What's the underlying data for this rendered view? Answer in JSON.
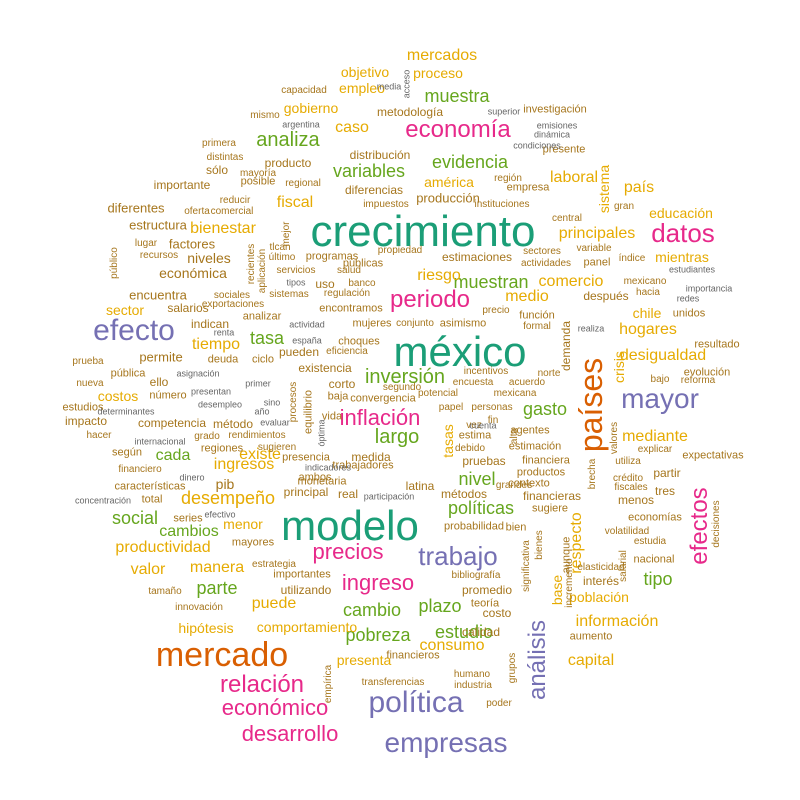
{
  "palette": {
    "teal": "#1b9e77",
    "orange": "#d95f02",
    "purple": "#7570b3",
    "magenta": "#e7298a",
    "green": "#66a61e",
    "gold": "#e6ab02",
    "brown": "#a6761d",
    "gray": "#666666"
  },
  "words": [
    {
      "text": "crecimiento",
      "color": "teal"
    },
    {
      "text": "méxico",
      "color": "teal"
    },
    {
      "text": "modelo",
      "color": "teal"
    },
    {
      "text": "mercado",
      "color": "orange"
    },
    {
      "text": "países",
      "color": "orange"
    },
    {
      "text": "efecto",
      "color": "purple"
    },
    {
      "text": "mayor",
      "color": "purple"
    },
    {
      "text": "política",
      "color": "purple"
    },
    {
      "text": "empresas",
      "color": "purple"
    },
    {
      "text": "trabajo",
      "color": "purple"
    },
    {
      "text": "análisis",
      "color": "purple"
    },
    {
      "text": "datos",
      "color": "magenta"
    },
    {
      "text": "economía",
      "color": "magenta"
    },
    {
      "text": "periodo",
      "color": "magenta"
    },
    {
      "text": "efectos",
      "color": "magenta"
    },
    {
      "text": "relación",
      "color": "magenta"
    },
    {
      "text": "económico",
      "color": "magenta"
    },
    {
      "text": "desarrollo",
      "color": "magenta"
    },
    {
      "text": "precios",
      "color": "magenta"
    },
    {
      "text": "ingreso",
      "color": "magenta"
    },
    {
      "text": "inflación",
      "color": "magenta"
    },
    {
      "text": "analiza",
      "color": "green"
    },
    {
      "text": "largo",
      "color": "green"
    },
    {
      "text": "inversión",
      "color": "green"
    },
    {
      "text": "evidencia",
      "color": "green"
    },
    {
      "text": "muestra",
      "color": "green"
    },
    {
      "text": "variables",
      "color": "green"
    },
    {
      "text": "muestran",
      "color": "green"
    },
    {
      "text": "políticas",
      "color": "green"
    },
    {
      "text": "nivel",
      "color": "green"
    },
    {
      "text": "gasto",
      "color": "green"
    },
    {
      "text": "social",
      "color": "green"
    },
    {
      "text": "cambio",
      "color": "green"
    },
    {
      "text": "plazo",
      "color": "green"
    },
    {
      "text": "pobreza",
      "color": "green"
    },
    {
      "text": "estudio",
      "color": "green"
    },
    {
      "text": "parte",
      "color": "green"
    },
    {
      "text": "tasa",
      "color": "green"
    },
    {
      "text": "tipo",
      "color": "green"
    },
    {
      "text": "cambios",
      "color": "green"
    },
    {
      "text": "cada",
      "color": "green"
    },
    {
      "text": "mercados",
      "color": "gold"
    },
    {
      "text": "objetivo",
      "color": "gold"
    },
    {
      "text": "empleo",
      "color": "gold"
    },
    {
      "text": "proceso",
      "color": "gold"
    },
    {
      "text": "gobierno",
      "color": "gold"
    },
    {
      "text": "caso",
      "color": "gold"
    },
    {
      "text": "fiscal",
      "color": "gold"
    },
    {
      "text": "bienestar",
      "color": "gold"
    },
    {
      "text": "principales",
      "color": "gold"
    },
    {
      "text": "laboral",
      "color": "gold"
    },
    {
      "text": "américa",
      "color": "gold"
    },
    {
      "text": "país",
      "color": "gold"
    },
    {
      "text": "educación",
      "color": "gold"
    },
    {
      "text": "mientras",
      "color": "gold"
    },
    {
      "text": "comercio",
      "color": "gold"
    },
    {
      "text": "medio",
      "color": "gold"
    },
    {
      "text": "riesgo",
      "color": "gold"
    },
    {
      "text": "chile",
      "color": "gold"
    },
    {
      "text": "hogares",
      "color": "gold"
    },
    {
      "text": "desigualdad",
      "color": "gold"
    },
    {
      "text": "tiempo",
      "color": "gold"
    },
    {
      "text": "existe",
      "color": "gold"
    },
    {
      "text": "costos",
      "color": "gold"
    },
    {
      "text": "ingresos",
      "color": "gold"
    },
    {
      "text": "desempeño",
      "color": "gold"
    },
    {
      "text": "productividad",
      "color": "gold"
    },
    {
      "text": "valor",
      "color": "gold"
    },
    {
      "text": "manera",
      "color": "gold"
    },
    {
      "text": "puede",
      "color": "gold"
    },
    {
      "text": "sector",
      "color": "gold"
    },
    {
      "text": "comportamiento",
      "color": "gold"
    },
    {
      "text": "hipótesis",
      "color": "gold"
    },
    {
      "text": "presenta",
      "color": "gold"
    },
    {
      "text": "consumo",
      "color": "gold"
    },
    {
      "text": "mediante",
      "color": "gold"
    },
    {
      "text": "información",
      "color": "gold"
    },
    {
      "text": "capital",
      "color": "gold"
    },
    {
      "text": "población",
      "color": "gold"
    },
    {
      "text": "respecto",
      "color": "gold"
    },
    {
      "text": "sistema",
      "color": "gold"
    },
    {
      "text": "crisis",
      "color": "gold"
    },
    {
      "text": "tasas",
      "color": "gold"
    },
    {
      "text": "base",
      "color": "gold"
    },
    {
      "text": "metodología",
      "color": "brown"
    },
    {
      "text": "investigación",
      "color": "brown"
    },
    {
      "text": "distribución",
      "color": "brown"
    },
    {
      "text": "producción",
      "color": "brown"
    },
    {
      "text": "diferencias",
      "color": "brown"
    },
    {
      "text": "producto",
      "color": "brown"
    },
    {
      "text": "estructura",
      "color": "brown"
    },
    {
      "text": "diferentes",
      "color": "brown"
    },
    {
      "text": "importante",
      "color": "brown"
    },
    {
      "text": "factores",
      "color": "brown"
    },
    {
      "text": "niveles",
      "color": "brown"
    },
    {
      "text": "económica",
      "color": "brown"
    },
    {
      "text": "encuentra",
      "color": "brown"
    },
    {
      "text": "salarios",
      "color": "brown"
    },
    {
      "text": "indican",
      "color": "brown"
    },
    {
      "text": "permite",
      "color": "brown"
    },
    {
      "text": "estimaciones",
      "color": "brown"
    },
    {
      "text": "programas",
      "color": "brown"
    },
    {
      "text": "empresa",
      "color": "brown"
    },
    {
      "text": "presente",
      "color": "brown"
    },
    {
      "text": "panel",
      "color": "brown"
    },
    {
      "text": "después",
      "color": "brown"
    },
    {
      "text": "resultado",
      "color": "brown"
    },
    {
      "text": "evolución",
      "color": "brown"
    },
    {
      "text": "expectativas",
      "color": "brown"
    },
    {
      "text": "partir",
      "color": "brown"
    },
    {
      "text": "tres",
      "color": "brown"
    },
    {
      "text": "menos",
      "color": "brown"
    },
    {
      "text": "economías",
      "color": "brown"
    },
    {
      "text": "nacional",
      "color": "brown"
    },
    {
      "text": "interés",
      "color": "brown"
    },
    {
      "text": "aumento",
      "color": "brown"
    },
    {
      "text": "calidad",
      "color": "brown"
    },
    {
      "text": "promedio",
      "color": "brown"
    },
    {
      "text": "costo",
      "color": "brown"
    },
    {
      "text": "teoría",
      "color": "brown"
    },
    {
      "text": "financieros",
      "color": "brown"
    },
    {
      "text": "industria",
      "color": "brown"
    },
    {
      "text": "poder",
      "color": "brown"
    },
    {
      "text": "transferencias",
      "color": "brown"
    },
    {
      "text": "utilizando",
      "color": "brown"
    },
    {
      "text": "importantes",
      "color": "brown"
    },
    {
      "text": "mayores",
      "color": "brown"
    },
    {
      "text": "series",
      "color": "brown"
    },
    {
      "text": "pib",
      "color": "brown"
    },
    {
      "text": "principal",
      "color": "brown"
    },
    {
      "text": "ambos",
      "color": "brown"
    },
    {
      "text": "real",
      "color": "brown"
    },
    {
      "text": "medida",
      "color": "brown"
    },
    {
      "text": "trabajadores",
      "color": "brown"
    },
    {
      "text": "latina",
      "color": "brown"
    },
    {
      "text": "métodos",
      "color": "brown"
    },
    {
      "text": "pruebas",
      "color": "brown"
    },
    {
      "text": "financieras",
      "color": "brown"
    },
    {
      "text": "sugiere",
      "color": "brown"
    },
    {
      "text": "probabilidad",
      "color": "brown"
    },
    {
      "text": "bien",
      "color": "brown"
    },
    {
      "text": "regiones",
      "color": "brown"
    },
    {
      "text": "según",
      "color": "brown"
    },
    {
      "text": "competencia",
      "color": "brown"
    },
    {
      "text": "método",
      "color": "brown"
    },
    {
      "text": "estudios",
      "color": "brown"
    },
    {
      "text": "impacto",
      "color": "brown"
    },
    {
      "text": "presencia",
      "color": "brown"
    },
    {
      "text": "existencia",
      "color": "brown"
    },
    {
      "text": "corto",
      "color": "brown"
    },
    {
      "text": "pueden",
      "color": "brown"
    },
    {
      "text": "mujeres",
      "color": "brown"
    },
    {
      "text": "conjunto",
      "color": "brown"
    },
    {
      "text": "asimismo",
      "color": "brown"
    },
    {
      "text": "estima",
      "color": "brown"
    },
    {
      "text": "agentes",
      "color": "brown"
    },
    {
      "text": "estimación",
      "color": "brown"
    },
    {
      "text": "financiera",
      "color": "brown"
    },
    {
      "text": "productos",
      "color": "brown"
    },
    {
      "text": "contexto",
      "color": "brown"
    },
    {
      "text": "regulación",
      "color": "brown"
    },
    {
      "text": "públicas",
      "color": "brown"
    },
    {
      "text": "uso",
      "color": "brown"
    },
    {
      "text": "servicios",
      "color": "brown"
    },
    {
      "text": "analizar",
      "color": "brown"
    },
    {
      "text": "sistemas",
      "color": "brown"
    },
    {
      "text": "exportaciones",
      "color": "brown"
    },
    {
      "text": "sólo",
      "color": "brown"
    },
    {
      "text": "posible",
      "color": "brown"
    },
    {
      "text": "comercial",
      "color": "brown"
    },
    {
      "text": "impuestos",
      "color": "brown"
    },
    {
      "text": "instituciones",
      "color": "brown"
    },
    {
      "text": "bajo",
      "color": "brown"
    },
    {
      "text": "reforma",
      "color": "brown"
    },
    {
      "text": "mexicano",
      "color": "brown"
    },
    {
      "text": "unidos",
      "color": "brown"
    },
    {
      "text": "hacia",
      "color": "brown"
    },
    {
      "text": "estudia",
      "color": "brown"
    },
    {
      "text": "utiliza",
      "color": "brown"
    },
    {
      "text": "explicar",
      "color": "brown"
    },
    {
      "text": "crédito",
      "color": "brown"
    },
    {
      "text": "fiscales",
      "color": "brown"
    },
    {
      "text": "volatilidad",
      "color": "brown"
    },
    {
      "text": "decisiones",
      "color": "brown"
    },
    {
      "text": "grandes",
      "color": "brown"
    },
    {
      "text": "bienes",
      "color": "brown"
    },
    {
      "text": "demanda",
      "color": "brown"
    },
    {
      "text": "función",
      "color": "brown"
    },
    {
      "text": "formal",
      "color": "brown"
    },
    {
      "text": "precio",
      "color": "brown"
    },
    {
      "text": "norte",
      "color": "brown"
    },
    {
      "text": "incentivos",
      "color": "brown"
    },
    {
      "text": "acuerdo",
      "color": "brown"
    },
    {
      "text": "encuesta",
      "color": "brown"
    },
    {
      "text": "segundo",
      "color": "brown"
    },
    {
      "text": "convergencia",
      "color": "brown"
    },
    {
      "text": "potencial",
      "color": "brown"
    },
    {
      "text": "mexicana",
      "color": "brown"
    },
    {
      "text": "papel",
      "color": "brown"
    },
    {
      "text": "personas",
      "color": "brown"
    },
    {
      "text": "baja",
      "color": "brown"
    },
    {
      "text": "choques",
      "color": "brown"
    },
    {
      "text": "eficiencia",
      "color": "brown"
    },
    {
      "text": "encontramos",
      "color": "brown"
    },
    {
      "text": "monetaria",
      "color": "brown"
    },
    {
      "text": "equilibrio",
      "color": "brown"
    },
    {
      "text": "procesos",
      "color": "brown"
    },
    {
      "text": "vida",
      "color": "brown"
    },
    {
      "text": "deuda",
      "color": "brown"
    },
    {
      "text": "ciclo",
      "color": "brown"
    },
    {
      "text": "pública",
      "color": "brown"
    },
    {
      "text": "ello",
      "color": "brown"
    },
    {
      "text": "número",
      "color": "brown"
    },
    {
      "text": "prueba",
      "color": "brown"
    },
    {
      "text": "nueva",
      "color": "brown"
    },
    {
      "text": "hacer",
      "color": "brown"
    },
    {
      "text": "financiero",
      "color": "brown"
    },
    {
      "text": "características",
      "color": "brown"
    },
    {
      "text": "total",
      "color": "brown"
    },
    {
      "text": "tamaño",
      "color": "brown"
    },
    {
      "text": "innovación",
      "color": "brown"
    },
    {
      "text": "estrategia",
      "color": "brown"
    },
    {
      "text": "grado",
      "color": "brown"
    },
    {
      "text": "rendimientos",
      "color": "brown"
    },
    {
      "text": "sugieren",
      "color": "brown"
    },
    {
      "text": "capacidad",
      "color": "brown"
    },
    {
      "text": "mismo",
      "color": "brown"
    },
    {
      "text": "primera",
      "color": "brown"
    },
    {
      "text": "distintas",
      "color": "brown"
    },
    {
      "text": "reducir",
      "color": "brown"
    },
    {
      "text": "oferta",
      "color": "brown"
    },
    {
      "text": "lugar",
      "color": "brown"
    },
    {
      "text": "recursos",
      "color": "brown"
    },
    {
      "text": "público",
      "color": "brown"
    },
    {
      "text": "mayoría",
      "color": "brown"
    },
    {
      "text": "regional",
      "color": "brown"
    },
    {
      "text": "sociales",
      "color": "brown"
    },
    {
      "text": "región",
      "color": "brown"
    },
    {
      "text": "sectores",
      "color": "brown"
    },
    {
      "text": "actividades",
      "color": "brown"
    },
    {
      "text": "central",
      "color": "brown"
    },
    {
      "text": "variable",
      "color": "brown"
    },
    {
      "text": "gran",
      "color": "brown"
    },
    {
      "text": "índice",
      "color": "brown"
    },
    {
      "text": "elasticidad",
      "color": "brown"
    },
    {
      "text": "empírica",
      "color": "brown"
    },
    {
      "text": "aunque",
      "color": "brown"
    },
    {
      "text": "incremento",
      "color": "brown"
    },
    {
      "text": "significativa",
      "color": "brown"
    },
    {
      "text": "brecha",
      "color": "brown"
    },
    {
      "text": "valores",
      "color": "brown"
    },
    {
      "text": "salarial",
      "color": "brown"
    },
    {
      "text": "fin",
      "color": "brown"
    },
    {
      "text": "debido",
      "color": "brown"
    },
    {
      "text": "vez",
      "color": "brown"
    },
    {
      "text": "alta",
      "color": "brown"
    },
    {
      "text": "bibliografía",
      "color": "brown"
    },
    {
      "text": "humano",
      "color": "brown"
    },
    {
      "text": "grupos",
      "color": "brown"
    },
    {
      "text": "mejor",
      "color": "brown"
    },
    {
      "text": "recientes",
      "color": "brown"
    },
    {
      "text": "aplicación",
      "color": "brown"
    },
    {
      "text": "tlcan",
      "color": "brown"
    },
    {
      "text": "último",
      "color": "brown"
    },
    {
      "text": "propiedad",
      "color": "brown"
    },
    {
      "text": "salud",
      "color": "brown"
    },
    {
      "text": "banco",
      "color": "brown"
    },
    {
      "text": "actividad",
      "color": "gray"
    },
    {
      "text": "tipos",
      "color": "gray"
    },
    {
      "text": "asignación",
      "color": "gray"
    },
    {
      "text": "primer",
      "color": "gray"
    },
    {
      "text": "presentan",
      "color": "gray"
    },
    {
      "text": "desempleo",
      "color": "gray"
    },
    {
      "text": "determinantes",
      "color": "gray"
    },
    {
      "text": "año",
      "color": "gray"
    },
    {
      "text": "internacional",
      "color": "gray"
    },
    {
      "text": "evaluar",
      "color": "gray"
    },
    {
      "text": "españa",
      "color": "gray"
    },
    {
      "text": "óptima",
      "color": "gray"
    },
    {
      "text": "dinero",
      "color": "gray"
    },
    {
      "text": "indicadores",
      "color": "gray"
    },
    {
      "text": "participación",
      "color": "gray"
    },
    {
      "text": "concentración",
      "color": "gray"
    },
    {
      "text": "efectivo",
      "color": "gray"
    },
    {
      "text": "renta",
      "color": "gray"
    },
    {
      "text": "sino",
      "color": "gray"
    },
    {
      "text": "argentina",
      "color": "gray"
    },
    {
      "text": "media",
      "color": "gray"
    },
    {
      "text": "acceso",
      "color": "gray"
    },
    {
      "text": "superior",
      "color": "gray"
    },
    {
      "text": "emisiones",
      "color": "gray"
    },
    {
      "text": "dinámica",
      "color": "gray"
    },
    {
      "text": "condiciones",
      "color": "gray"
    },
    {
      "text": "realiza",
      "color": "gray"
    },
    {
      "text": "importancia",
      "color": "gray"
    },
    {
      "text": "redes",
      "color": "gray"
    },
    {
      "text": "estudiantes",
      "color": "gray"
    },
    {
      "text": "cuenta",
      "color": "gray"
    },
    {
      "text": "menor",
      "color": "gold"
    }
  ]
}
